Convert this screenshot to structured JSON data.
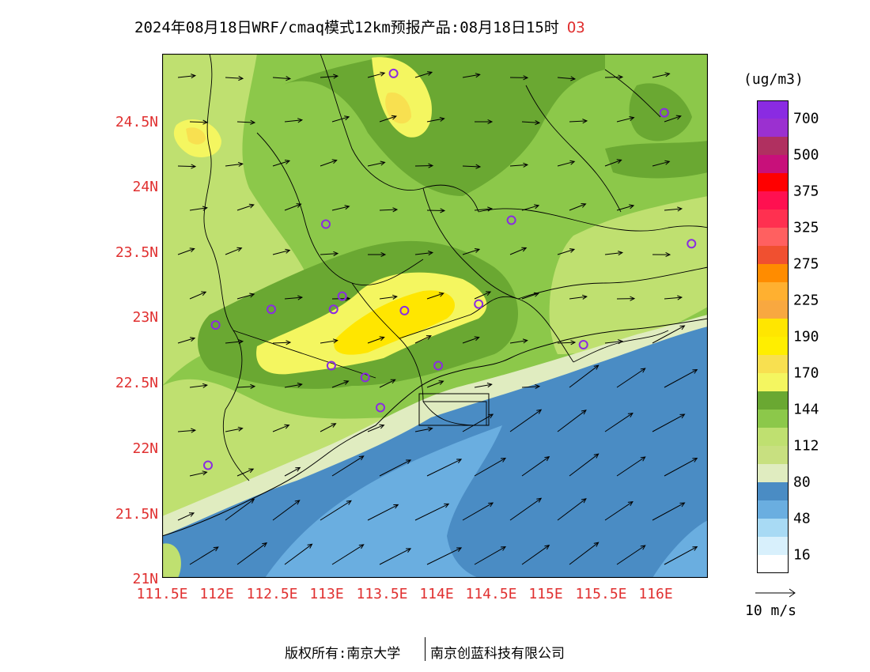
{
  "title": {
    "main": "2024年08月18日WRF/cmaq模式12km预报产品:08月18日15时",
    "pollutant": "O3"
  },
  "axes": {
    "lat_labels": [
      "24.5N",
      "24N",
      "23.5N",
      "23N",
      "22.5N",
      "22N",
      "21.5N",
      "21N"
    ],
    "lon_labels": [
      "111.5E",
      "112E",
      "112.5E",
      "113E",
      "113.5E",
      "114E",
      "114.5E",
      "115E",
      "115.5E",
      "116E"
    ]
  },
  "legend": {
    "unit": "(ug/m3)",
    "levels": [
      {
        "label": "700",
        "color": "#8a2be2"
      },
      {
        "label": "",
        "color": "#9b30d0"
      },
      {
        "label": "500",
        "color": "#b03060"
      },
      {
        "label": "",
        "color": "#c8107a"
      },
      {
        "label": "375",
        "color": "#ff0000"
      },
      {
        "label": "",
        "color": "#ff1050"
      },
      {
        "label": "325",
        "color": "#ff3050"
      },
      {
        "label": "",
        "color": "#ff6060"
      },
      {
        "label": "275",
        "color": "#f05030"
      },
      {
        "label": "",
        "color": "#ff8c00"
      },
      {
        "label": "225",
        "color": "#ffb030"
      },
      {
        "label": "",
        "color": "#f8a840"
      },
      {
        "label": "190",
        "color": "#ffe600"
      },
      {
        "label": "",
        "color": "#ffee00"
      },
      {
        "label": "170",
        "color": "#f8e050"
      },
      {
        "label": "",
        "color": "#f4f660"
      },
      {
        "label": "144",
        "color": "#6aa832"
      },
      {
        "label": "",
        "color": "#8cc84a"
      },
      {
        "label": "112",
        "color": "#bfe070"
      },
      {
        "label": "",
        "color": "#c8e080"
      },
      {
        "label": "80",
        "color": "#e0ecc0"
      },
      {
        "label": "",
        "color": "#4a8cc4"
      },
      {
        "label": "48",
        "color": "#6aaee0"
      },
      {
        "label": "",
        "color": "#a8daf4"
      },
      {
        "label": "16",
        "color": "#d8f0fc"
      },
      {
        "label": "",
        "color": "#ffffff"
      }
    ]
  },
  "wind_reference": "10 m/s",
  "stations": [
    {
      "lon": 113.62,
      "lat": 24.85
    },
    {
      "lon": 116.1,
      "lat": 24.55
    },
    {
      "lon": 113.0,
      "lat": 23.7
    },
    {
      "lon": 114.7,
      "lat": 23.73
    },
    {
      "lon": 116.35,
      "lat": 23.55
    },
    {
      "lon": 113.15,
      "lat": 23.15
    },
    {
      "lon": 113.07,
      "lat": 23.05
    },
    {
      "lon": 112.5,
      "lat": 23.05
    },
    {
      "lon": 111.99,
      "lat": 22.93
    },
    {
      "lon": 113.72,
      "lat": 23.04
    },
    {
      "lon": 114.4,
      "lat": 23.09
    },
    {
      "lon": 115.36,
      "lat": 22.78
    },
    {
      "lon": 113.05,
      "lat": 22.62
    },
    {
      "lon": 113.36,
      "lat": 22.53
    },
    {
      "lon": 114.03,
      "lat": 22.62
    },
    {
      "lon": 113.5,
      "lat": 22.3
    },
    {
      "lon": 111.92,
      "lat": 21.86
    }
  ],
  "footer": {
    "left": "版权所有:南京大学",
    "right": "南京创蓝科技有限公司"
  }
}
